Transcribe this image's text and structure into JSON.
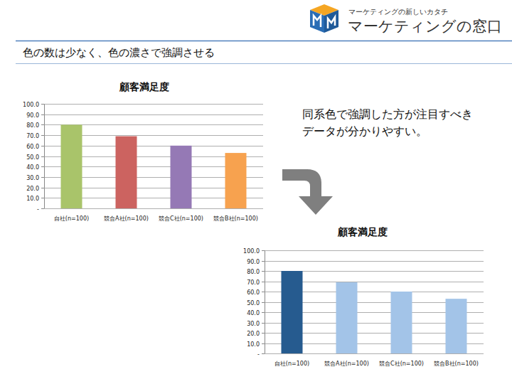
{
  "header": {
    "tagline": "マーケティングの新しいカタチ",
    "brand": "マーケティングの窓口"
  },
  "slide": {
    "title": "色の数は少なく、色の濃さで強調させる",
    "note": [
      "同系色で強調した方が注目すべき",
      "データが分かりやすい。"
    ]
  },
  "chart_data": [
    {
      "type": "bar",
      "title": "顧客満足度",
      "categories": [
        "自社(n=100)",
        "競合A社(n=100)",
        "競合C社(n=100)",
        "競合B社(n=100)"
      ],
      "values": [
        80.0,
        69.0,
        60.0,
        53.0
      ],
      "colors": [
        "#a9c46a",
        "#cc6360",
        "#9579b5",
        "#f7a24f"
      ],
      "ylim": [
        0,
        100
      ],
      "yticks": [
        {
          "value": 0,
          "label": "-"
        },
        {
          "value": 10,
          "label": "10.0"
        },
        {
          "value": 20,
          "label": "20.0"
        },
        {
          "value": 30,
          "label": "30.0"
        },
        {
          "value": 40,
          "label": "40.0"
        },
        {
          "value": 50,
          "label": "50.0"
        },
        {
          "value": 60,
          "label": "60.0"
        },
        {
          "value": 70,
          "label": "70.0"
        },
        {
          "value": 80,
          "label": "80.0"
        },
        {
          "value": 90,
          "label": "90.0"
        },
        {
          "value": 100,
          "label": "100.0"
        }
      ],
      "grid": true
    },
    {
      "type": "bar",
      "title": "顧客満足度",
      "categories": [
        "自社(n=100)",
        "競合A社(n=100)",
        "競合C社(n=100)",
        "競合B社(n=100)"
      ],
      "values": [
        80.0,
        69.0,
        60.0,
        53.0
      ],
      "colors": [
        "#265b8f",
        "#a3c4e8",
        "#a3c4e8",
        "#a3c4e8"
      ],
      "ylim": [
        0,
        100
      ],
      "yticks": [
        {
          "value": 0,
          "label": "-"
        },
        {
          "value": 10,
          "label": "10.0"
        },
        {
          "value": 20,
          "label": "20.0"
        },
        {
          "value": 30,
          "label": "30.0"
        },
        {
          "value": 40,
          "label": "40.0"
        },
        {
          "value": 50,
          "label": "50.0"
        },
        {
          "value": 60,
          "label": "60.0"
        },
        {
          "value": 70,
          "label": "70.0"
        },
        {
          "value": 80,
          "label": "80.0"
        },
        {
          "value": 90,
          "label": "90.0"
        },
        {
          "value": 100,
          "label": "100.0"
        }
      ],
      "grid": true
    }
  ]
}
